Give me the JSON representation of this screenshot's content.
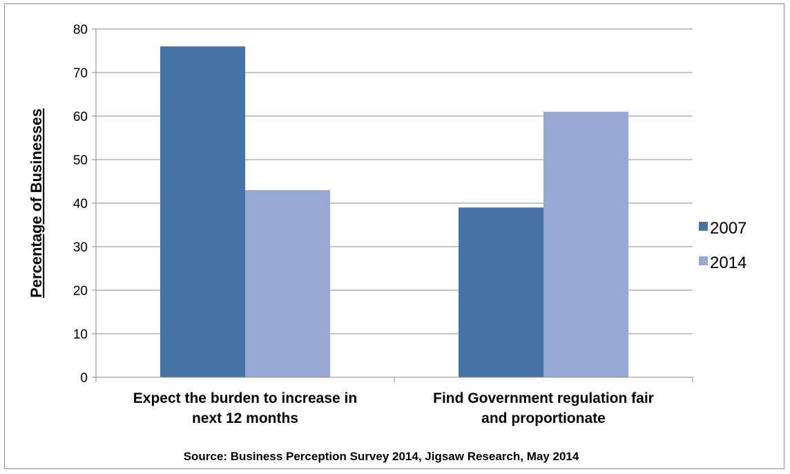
{
  "chart_data": {
    "type": "bar",
    "categories": [
      "Expect the burden to increase in next 12 months",
      "Find Government regulation fair and proportionate"
    ],
    "category_lines": [
      [
        "Expect the burden to increase in",
        "next 12 months"
      ],
      [
        "Find Government regulation fair",
        "and proportionate"
      ]
    ],
    "series": [
      {
        "name": "2007",
        "values": [
          76,
          39
        ],
        "color": "#4573a7"
      },
      {
        "name": "2014",
        "values": [
          43,
          61
        ],
        "color": "#95a9d2"
      }
    ],
    "ylabel": "Percentage of Businesses",
    "xlabel": "",
    "ylim": [
      0,
      80
    ],
    "yticks": [
      0,
      10,
      20,
      30,
      40,
      50,
      60,
      70,
      80
    ],
    "grid": true,
    "gridColor": "#8c8c8c",
    "legend_position": "right",
    "source": "Source: Business Perception Survey 2014, Jigsaw Research, May 2014"
  }
}
